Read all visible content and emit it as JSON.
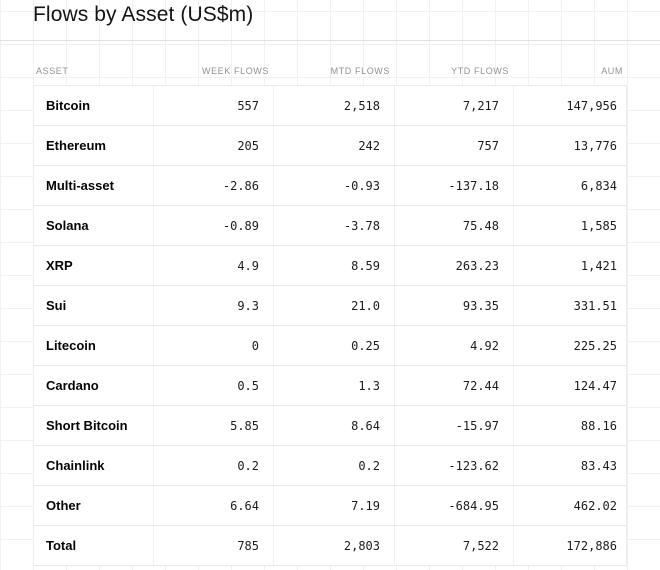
{
  "title": "Flows by Asset (US$m)",
  "colors": {
    "background": "#ffffff",
    "grid_line": "#f2f1f1",
    "divider": "#e3e3e3",
    "row_border": "#eaeaea",
    "header_text": "#919191",
    "body_text": "#1c1c1c",
    "asset_text": "#050505"
  },
  "table": {
    "columns": [
      {
        "key": "asset",
        "label": "ASSET",
        "align": "left"
      },
      {
        "key": "week",
        "label": "WEEK FLOWS",
        "align": "right"
      },
      {
        "key": "mtd",
        "label": "MTD FLOWS",
        "align": "right"
      },
      {
        "key": "ytd",
        "label": "YTD FLOWS",
        "align": "right"
      },
      {
        "key": "aum",
        "label": "AUM",
        "align": "right"
      }
    ],
    "rows": [
      {
        "asset": "Bitcoin",
        "week": "557",
        "mtd": "2,518",
        "ytd": "7,217",
        "aum": "147,956"
      },
      {
        "asset": "Ethereum",
        "week": "205",
        "mtd": "242",
        "ytd": "757",
        "aum": "13,776"
      },
      {
        "asset": "Multi-asset",
        "week": "-2.86",
        "mtd": "-0.93",
        "ytd": "-137.18",
        "aum": "6,834"
      },
      {
        "asset": "Solana",
        "week": "-0.89",
        "mtd": "-3.78",
        "ytd": "75.48",
        "aum": "1,585"
      },
      {
        "asset": "XRP",
        "week": "4.9",
        "mtd": "8.59",
        "ytd": "263.23",
        "aum": "1,421"
      },
      {
        "asset": "Sui",
        "week": "9.3",
        "mtd": "21.0",
        "ytd": "93.35",
        "aum": "331.51"
      },
      {
        "asset": "Litecoin",
        "week": "0",
        "mtd": "0.25",
        "ytd": "4.92",
        "aum": "225.25"
      },
      {
        "asset": "Cardano",
        "week": "0.5",
        "mtd": "1.3",
        "ytd": "72.44",
        "aum": "124.47"
      },
      {
        "asset": "Short Bitcoin",
        "week": "5.85",
        "mtd": "8.64",
        "ytd": "-15.97",
        "aum": "88.16"
      },
      {
        "asset": "Chainlink",
        "week": "0.2",
        "mtd": "0.2",
        "ytd": "-123.62",
        "aum": "83.43"
      },
      {
        "asset": "Other",
        "week": "6.64",
        "mtd": "7.19",
        "ytd": "-684.95",
        "aum": "462.02"
      },
      {
        "asset": "Total",
        "week": "785",
        "mtd": "2,803",
        "ytd": "7,522",
        "aum": "172,886"
      }
    ]
  },
  "chart_data": {
    "type": "table",
    "title": "Flows by Asset (US$m)",
    "columns": [
      "ASSET",
      "WEEK FLOWS",
      "MTD FLOWS",
      "YTD FLOWS",
      "AUM"
    ],
    "rows": [
      [
        "Bitcoin",
        557,
        2518,
        7217,
        147956
      ],
      [
        "Ethereum",
        205,
        242,
        757,
        13776
      ],
      [
        "Multi-asset",
        -2.86,
        -0.93,
        -137.18,
        6834
      ],
      [
        "Solana",
        -0.89,
        -3.78,
        75.48,
        1585
      ],
      [
        "XRP",
        4.9,
        8.59,
        263.23,
        1421
      ],
      [
        "Sui",
        9.3,
        21.0,
        93.35,
        331.51
      ],
      [
        "Litecoin",
        0,
        0.25,
        4.92,
        225.25
      ],
      [
        "Cardano",
        0.5,
        1.3,
        72.44,
        124.47
      ],
      [
        "Short Bitcoin",
        5.85,
        8.64,
        -15.97,
        88.16
      ],
      [
        "Chainlink",
        0.2,
        0.2,
        -123.62,
        83.43
      ],
      [
        "Other",
        6.64,
        7.19,
        -684.95,
        462.02
      ],
      [
        "Total",
        785,
        2803,
        7522,
        172886
      ]
    ]
  }
}
